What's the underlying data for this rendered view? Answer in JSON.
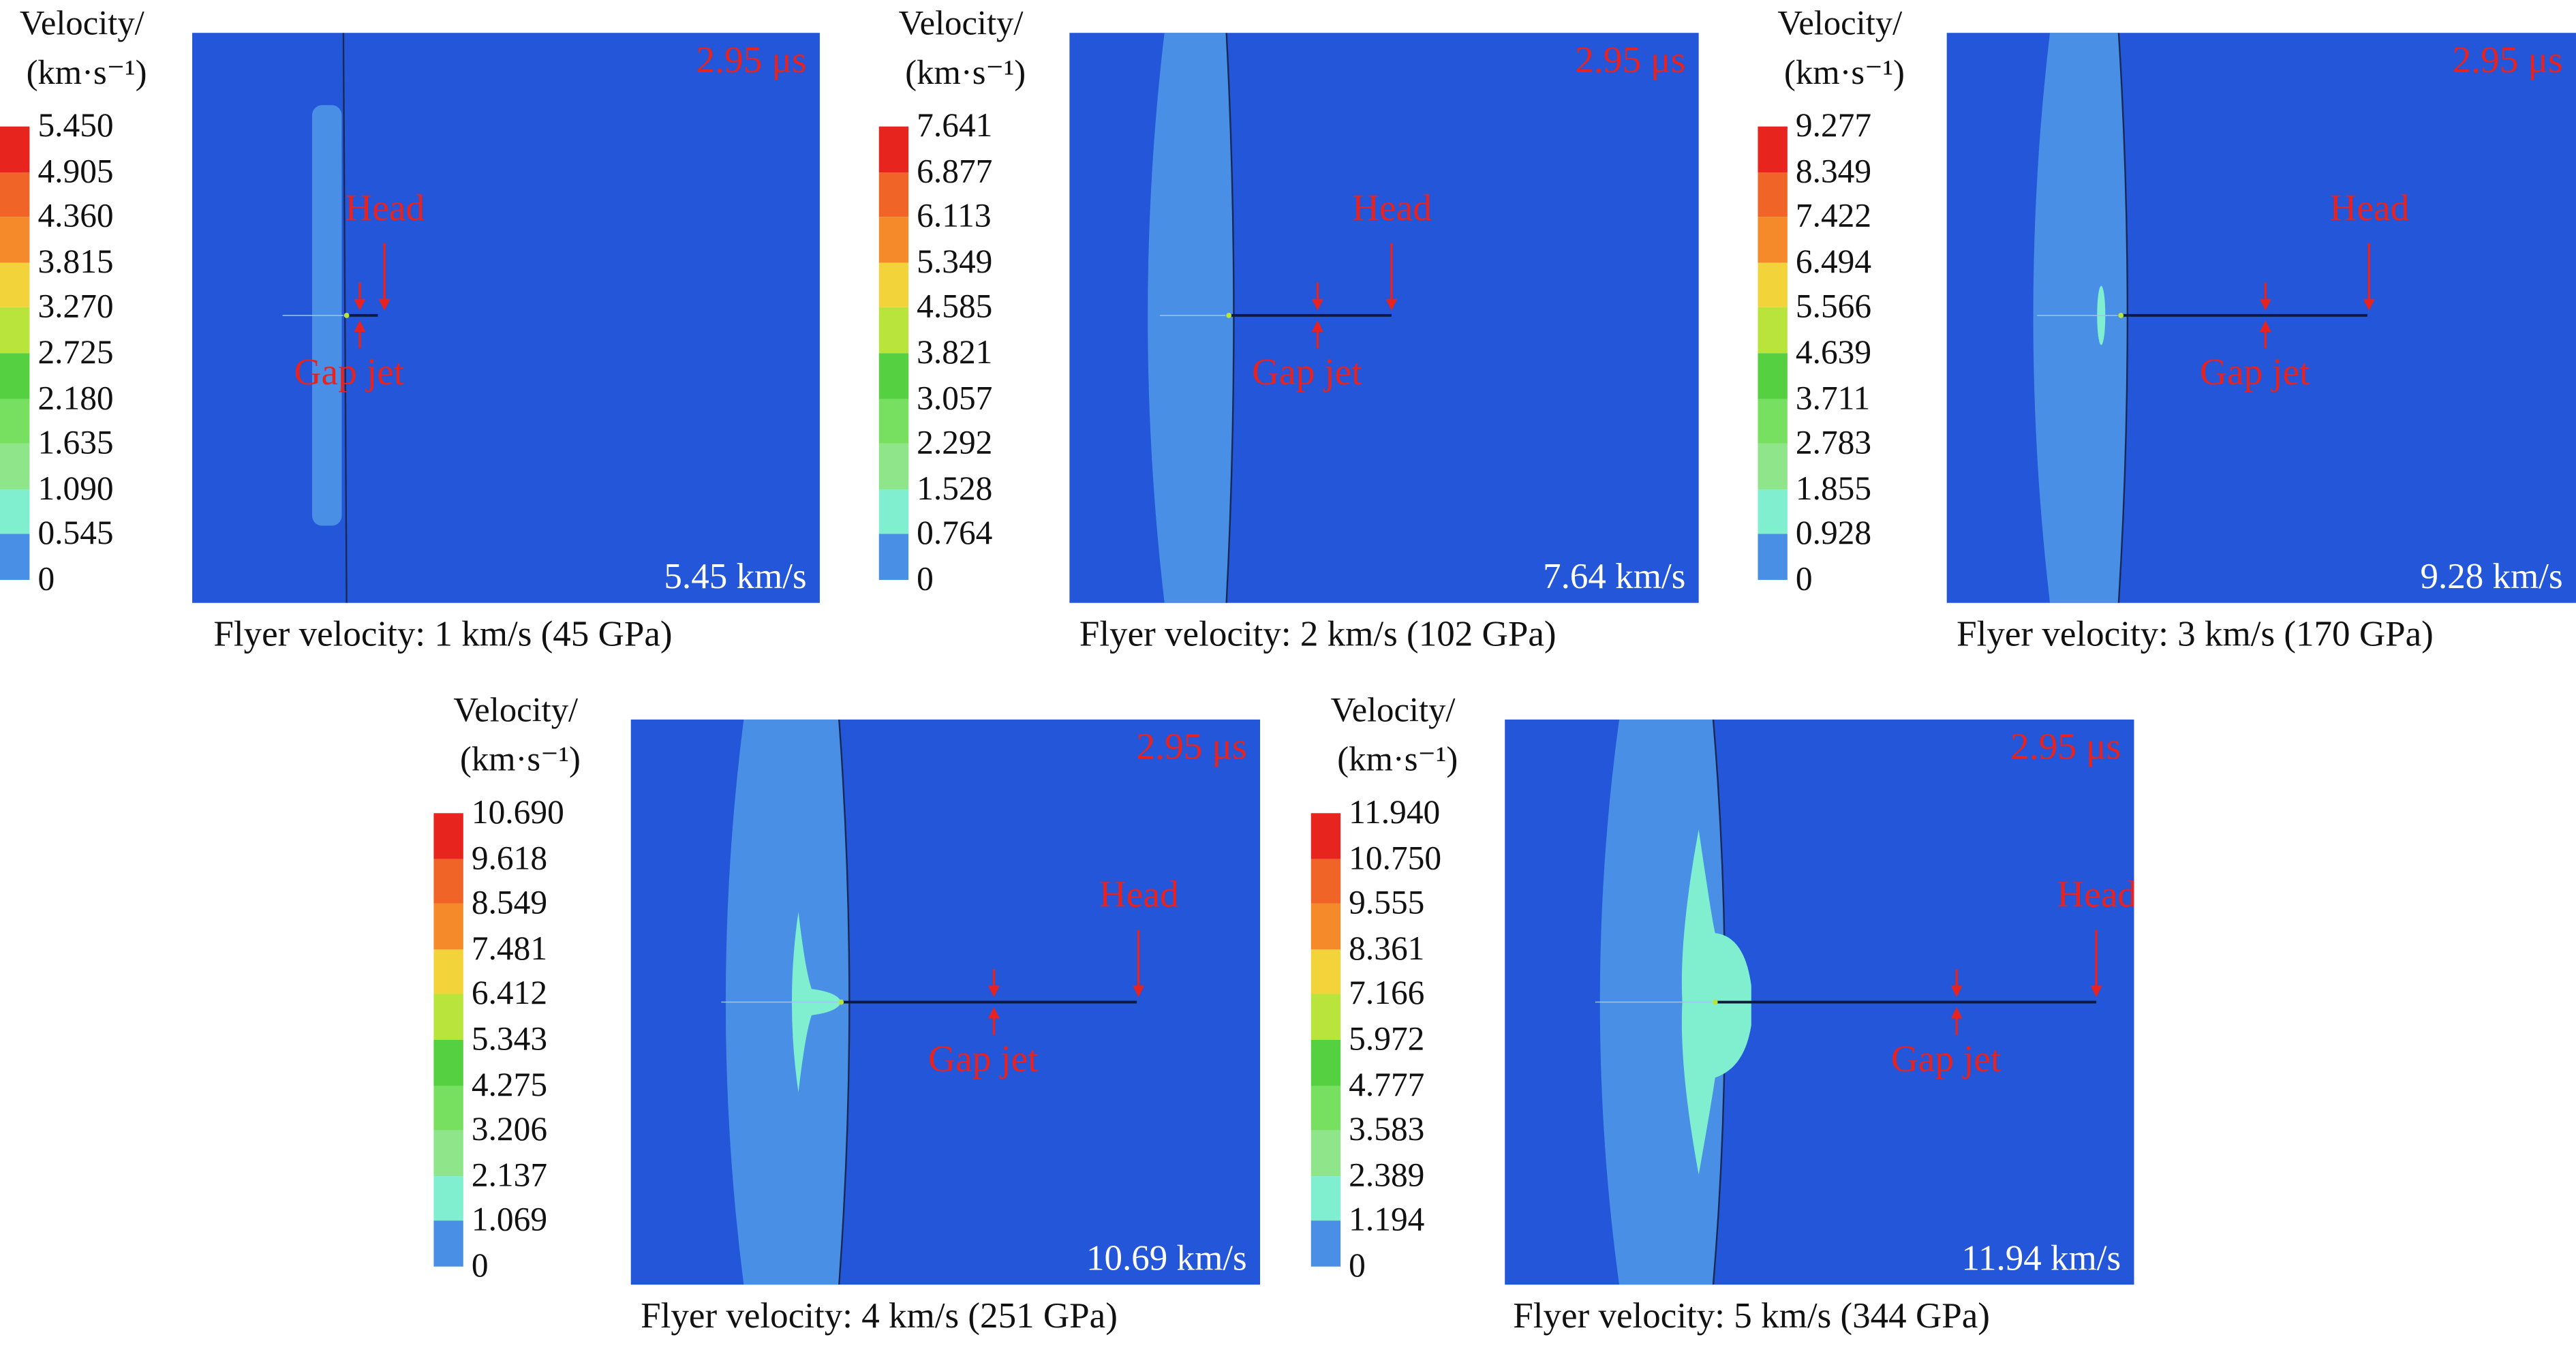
{
  "legend_title_line1": "Velocity/",
  "legend_title_line2": "(km·s⁻¹)",
  "colors": {
    "background": "#2356d9",
    "level1": "#4a8fe6",
    "level2": "#7fefcf",
    "annotation": "#e8231f",
    "scale": [
      "#2356d9",
      "#4a8fe6",
      "#7fefcf",
      "#8ee58a",
      "#78e060",
      "#55d040",
      "#b9e43c",
      "#f2d43a",
      "#f58a2a",
      "#f06428",
      "#e8241f"
    ]
  },
  "panels": [
    {
      "time": "2.95 μs",
      "head": "Head",
      "gap": "Gap jet",
      "speed": "5.45 km/s",
      "caption": "Flyer velocity: 1 km/s (45 GPa)",
      "legend": [
        "5.450",
        "4.905",
        "4.360",
        "3.815",
        "3.270",
        "2.725",
        "2.180",
        "1.635",
        "1.090",
        "0.545",
        "0"
      ]
    },
    {
      "time": "2.95 μs",
      "head": "Head",
      "gap": "Gap jet",
      "speed": "7.64 km/s",
      "caption": "Flyer velocity: 2 km/s (102 GPa)",
      "legend": [
        "7.641",
        "6.877",
        "6.113",
        "5.349",
        "4.585",
        "3.821",
        "3.057",
        "2.292",
        "1.528",
        "0.764",
        "0"
      ]
    },
    {
      "time": "2.95 μs",
      "head": "Head",
      "gap": "Gap jet",
      "speed": "9.28 km/s",
      "caption": "Flyer velocity: 3 km/s (170 GPa)",
      "legend": [
        "9.277",
        "8.349",
        "7.422",
        "6.494",
        "5.566",
        "4.639",
        "3.711",
        "2.783",
        "1.855",
        "0.928",
        "0"
      ]
    },
    {
      "time": "2.95 μs",
      "head": "Head",
      "gap": "Gap jet",
      "speed": "10.69 km/s",
      "caption": "Flyer velocity: 4 km/s (251 GPa)",
      "legend": [
        "10.690",
        "9.618",
        "8.549",
        "7.481",
        "6.412",
        "5.343",
        "4.275",
        "3.206",
        "2.137",
        "1.069",
        "0"
      ]
    },
    {
      "time": "2.95 μs",
      "head": "Head",
      "gap": "Gap jet",
      "speed": "11.94 km/s",
      "caption": "Flyer velocity: 5 km/s (344 GPa)",
      "legend": [
        "11.940",
        "10.750",
        "9.555",
        "8.361",
        "7.166",
        "5.972",
        "4.777",
        "3.583",
        "2.389",
        "1.194",
        "0"
      ]
    }
  ]
}
